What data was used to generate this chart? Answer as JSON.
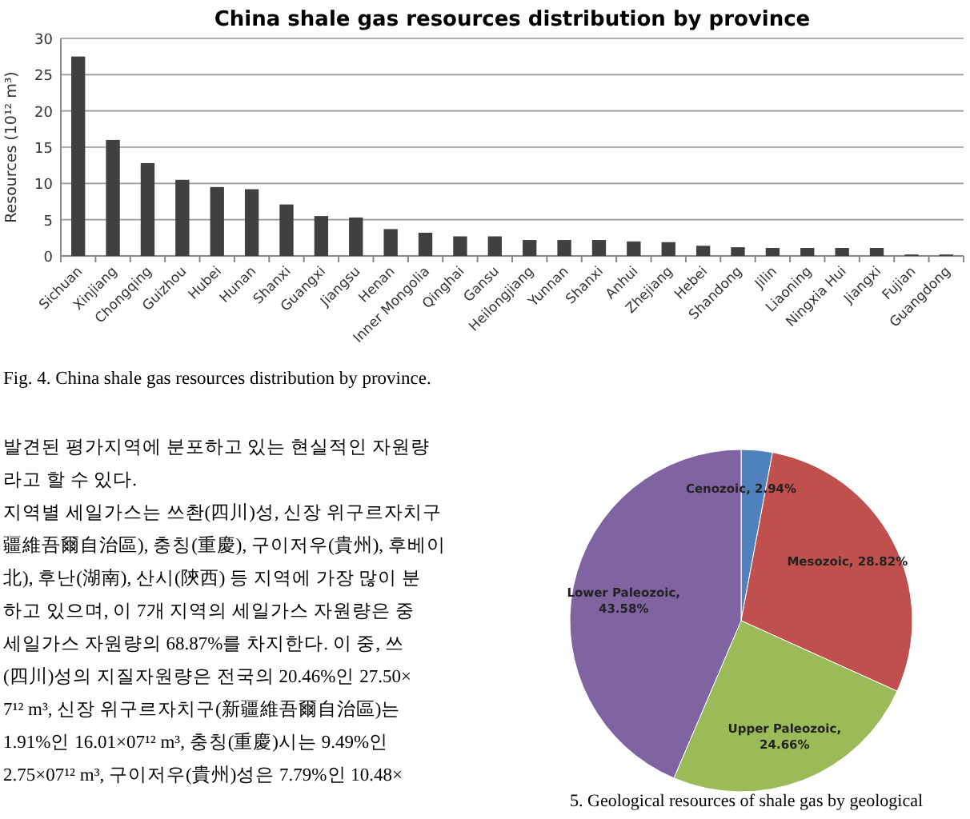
{
  "chart_data": [
    {
      "type": "bar",
      "title": "China shale gas resources distribution by province",
      "ylabel": "Resources (10¹² m³)",
      "categories": [
        "Sichuan",
        "Xinjiang",
        "Chongqing",
        "Guizhou",
        "Hubei",
        "Hunan",
        "Shanxi",
        "Guangxi",
        "Jiangsu",
        "Henan",
        "Inner Mongolia",
        "Qinghai",
        "Gansu",
        "Heilongjiang",
        "Yunnan",
        "Shanxi",
        "Anhui",
        "Zhejiang",
        "Hebei",
        "Shandong",
        "Jilin",
        "Liaoning",
        "Ningxia Hui",
        "Jiangxi",
        "Fujian",
        "Guangdong"
      ],
      "values": [
        27.5,
        16.0,
        12.8,
        10.5,
        9.5,
        9.2,
        7.1,
        5.5,
        5.3,
        3.7,
        3.2,
        2.7,
        2.7,
        2.2,
        2.2,
        2.2,
        2.0,
        1.9,
        1.4,
        1.2,
        1.1,
        1.1,
        1.1,
        1.1,
        0.2,
        0.2
      ],
      "color": "#404040",
      "ylim": [
        0,
        30
      ],
      "yticks": [
        0,
        5,
        10,
        15,
        20,
        25,
        30
      ],
      "grid": "y",
      "annotations": [
        "Fig. 4. China shale gas resources distribution by province."
      ]
    },
    {
      "type": "pie",
      "categories": [
        "Cenozoic",
        "Mesozoic",
        "Upper Paleozoic",
        "Lower Paleozoic"
      ],
      "values": [
        2.94,
        28.82,
        24.66,
        43.58
      ],
      "colors": [
        "#4f81bd",
        "#c0504d",
        "#9bbb59",
        "#8064a2"
      ],
      "value_labels": [
        ", 2.94%",
        ", 28.82%",
        ", 24.66%",
        ", 43.58%"
      ],
      "annotations": [
        "5. Geological resources of shale gas by geological"
      ]
    },
    {
      "type": "other",
      "annotations": [
        "발견된 평가지역에 분포하고 있는 현실적인 자원량",
        "라고 할 수 있다.",
        "지역별 세일가스는 쓰촨(四川)성, 신장 위구르자치구",
        "疆維吾爾自治區), 충칭(重慶), 구이저우(貴州), 후베이",
        "北), 후난(湖南), 산시(陝西) 등 지역에 가장 많이 분",
        "하고 있으며, 이 7개 지역의 세일가스 자원량은 중",
        "세일가스 자원량의 68.87%를 차지한다. 이 중, 쓰",
        "(四川)성의 지질자원량은 전국의 20.46%인 27.50×",
        "7¹² m³, 신장 위구르자치구(新疆維吾爾自治區)는",
        "1.91%인 16.01×07¹² m³, 충칭(重慶)시는 9.49%인",
        "2.75×07¹² m³, 구이저우(貴州)성은 7.79%인 10.48×"
      ]
    }
  ]
}
